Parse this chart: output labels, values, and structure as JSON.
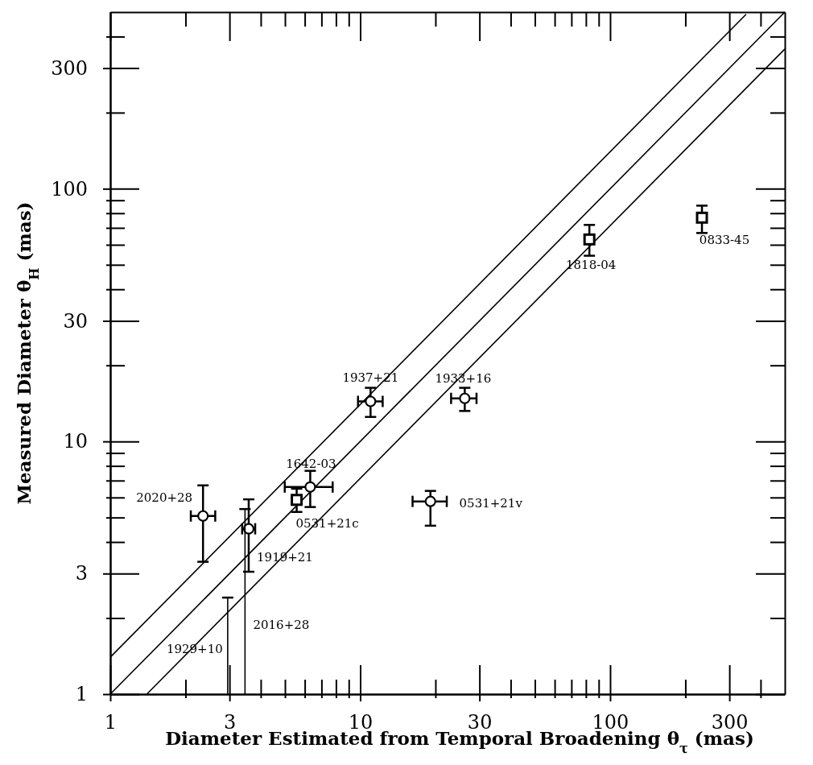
{
  "chart_data": {
    "type": "scatter",
    "log": "xy",
    "xlabel": "Diameter Estimated from Temporal Broadening θ$_{τ}$ (mas)",
    "ylabel": "Measured Diameter θ$_{H}$ (mas)",
    "xlim": [
      1,
      500
    ],
    "ylim": [
      1,
      500
    ],
    "xticks": [
      1,
      {
        "value": 2,
        "label": null
      },
      3,
      {
        "value": 4,
        "label": null
      },
      {
        "value": 5,
        "label": null
      },
      {
        "value": 6,
        "label": null
      },
      {
        "value": 7,
        "label": null
      },
      {
        "value": 8,
        "label": null
      },
      {
        "value": 9,
        "label": null
      },
      10,
      {
        "value": 20,
        "label": null
      },
      30,
      {
        "value": 40,
        "label": null
      },
      {
        "value": 50,
        "label": null
      },
      {
        "value": 60,
        "label": null
      },
      {
        "value": 70,
        "label": null
      },
      {
        "value": 80,
        "label": null
      },
      {
        "value": 90,
        "label": null
      },
      100,
      {
        "value": 200,
        "label": null
      },
      300,
      {
        "value": 400,
        "label": null
      }
    ],
    "yticks": [
      1,
      {
        "value": 2,
        "label": null
      },
      3,
      {
        "value": 4,
        "label": null
      },
      {
        "value": 5,
        "label": null
      },
      {
        "value": 6,
        "label": null
      },
      {
        "value": 7,
        "label": null
      },
      {
        "value": 8,
        "label": null
      },
      {
        "value": 9,
        "label": null
      },
      10,
      {
        "value": 20,
        "label": null
      },
      30,
      {
        "value": 40,
        "label": null
      },
      {
        "value": 50,
        "label": null
      },
      {
        "value": 60,
        "label": null
      },
      {
        "value": 70,
        "label": null
      },
      {
        "value": 80,
        "label": null
      },
      {
        "value": 90,
        "label": null
      },
      100,
      {
        "value": 200,
        "label": null
      },
      300,
      {
        "value": 400,
        "label": null
      }
    ],
    "series": [
      {
        "type": "line",
        "color": "#000000",
        "line_style": "solid",
        "x": [
          1,
          350
        ],
        "values": [
          1.4,
          490
        ]
      },
      {
        "type": "line",
        "color": "#000000",
        "line_style": "solid",
        "x": [
          1,
          500
        ],
        "values": [
          1,
          500
        ]
      },
      {
        "type": "line",
        "color": "#000000",
        "line_style": "solid",
        "x": [
          1.4,
          500
        ],
        "values": [
          1,
          357
        ]
      },
      {
        "color": "#000000",
        "marker": "circle",
        "x": [
          2.35,
          3.58,
          6.31,
          11.0,
          26.2,
          19.1
        ],
        "values": [
          5.07,
          4.51,
          6.6,
          14.4,
          14.8,
          5.79
        ],
        "errors": [
          [
            3.34,
            6.7
          ],
          [
            3.05,
            5.9
          ],
          [
            5.5,
            7.65
          ],
          [
            12.5,
            16.3
          ],
          [
            13.2,
            16.3
          ],
          [
            4.64,
            6.37
          ]
        ],
        "xerrors": [
          [
            2.1,
            2.63
          ],
          [
            3.37,
            3.8
          ],
          [
            4.99,
            7.76
          ],
          [
            9.8,
            12.3
          ],
          [
            23.1,
            29.2
          ],
          [
            16.2,
            22.2
          ]
        ]
      },
      {
        "color": "#000000",
        "marker": "square",
        "x": [
          5.57,
          82.6,
          233
        ],
        "values": [
          5.87,
          63,
          76.8
        ],
        "errors": [
          [
            5.26,
            6.5
          ],
          [
            54.3,
            71.9
          ],
          [
            66.8,
            85.7
          ]
        ],
        "xerrors": [
          [
            5.37,
            5.8
          ],
          null,
          null
        ]
      },
      {
        "type": "line",
        "color": "#000000",
        "line_style": "solid",
        "x": [
          3.46,
          3.46
        ],
        "values": [
          1,
          5.4
        ]
      },
      {
        "type": "line",
        "color": "#000000",
        "line_style": "solid",
        "x": [
          2.95,
          2.95
        ],
        "values": [
          1,
          2.41
        ]
      }
    ],
    "annotations": [
      {
        "text": "1937+21",
        "x": 11.0,
        "y": 14.4
      },
      {
        "text": "1933+16",
        "x": 26.2,
        "y": 14.8
      },
      {
        "text": "1642-03",
        "x": 6.31,
        "y": 6.6
      },
      {
        "text": "0531+21c",
        "x": 5.57,
        "y": 5.87
      },
      {
        "text": "0531+21v",
        "x": 19.1,
        "y": 5.79
      },
      {
        "text": "2020+28",
        "x": 2.35,
        "y": 5.07
      },
      {
        "text": "1919+21",
        "x": 3.58,
        "y": 4.51
      },
      {
        "text": "2016+28",
        "x": 3.46,
        "y": 1.88
      },
      {
        "text": "1929+10",
        "x": 2.95,
        "y": 1.51
      },
      {
        "text": "1818-04",
        "x": 82.6,
        "y": 63
      },
      {
        "text": "0833-45",
        "x": 233,
        "y": 76.8
      }
    ]
  }
}
